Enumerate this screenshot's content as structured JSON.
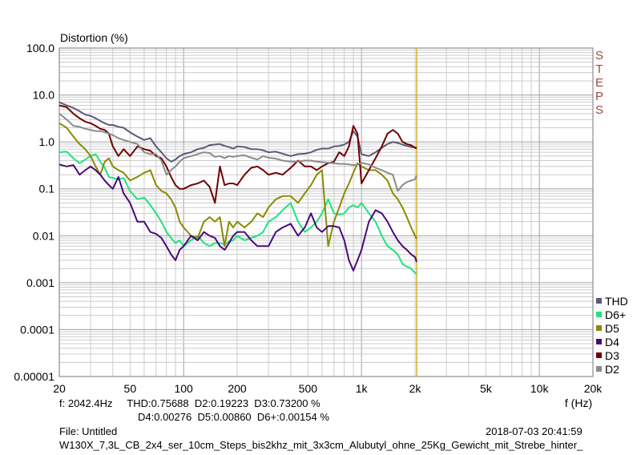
{
  "chart_data": {
    "type": "line",
    "title": "Distortion (%)",
    "xlabel": "f (Hz)",
    "xscale": "log",
    "yscale": "log",
    "xlim": [
      20,
      20000
    ],
    "ylim": [
      1e-05,
      100
    ],
    "x_tick_labels": [
      "20",
      "50",
      "100",
      "200",
      "500",
      "1k",
      "2k",
      "5k",
      "10k",
      "20k"
    ],
    "y_tick_labels": [
      "100.0",
      "10.0",
      "1.0",
      "0.1",
      "0.01",
      "0.001",
      "0.0001",
      "0.00001"
    ],
    "brand_label": "STEPS",
    "cursor_frequency": 2042.4,
    "grid": true,
    "legend_position": "right-bottom",
    "x": [
      20,
      22,
      24,
      26,
      28,
      30,
      32,
      34,
      36,
      38,
      40,
      43,
      46,
      50,
      55,
      60,
      65,
      70,
      75,
      80,
      85,
      90,
      95,
      100,
      110,
      120,
      130,
      140,
      150,
      160,
      170,
      180,
      190,
      200,
      220,
      240,
      260,
      280,
      300,
      330,
      360,
      400,
      440,
      480,
      520,
      560,
      600,
      650,
      700,
      750,
      800,
      850,
      900,
      950,
      1000,
      1100,
      1200,
      1300,
      1400,
      1500,
      1600,
      1700,
      1800,
      1900,
      2000,
      2042
    ],
    "series": [
      {
        "name": "THD",
        "color": "#5a5a78",
        "values": [
          7,
          6,
          5.3,
          4.5,
          3.8,
          3.6,
          3.2,
          2.8,
          2.5,
          2.3,
          2.3,
          2.1,
          2,
          1.6,
          1.3,
          1.1,
          1.2,
          0.8,
          0.6,
          0.45,
          0.38,
          0.42,
          0.5,
          0.55,
          0.6,
          0.7,
          0.75,
          0.85,
          0.88,
          0.9,
          0.82,
          0.78,
          0.72,
          0.8,
          0.78,
          0.7,
          0.7,
          0.66,
          0.6,
          0.62,
          0.56,
          0.5,
          0.55,
          0.56,
          0.6,
          0.68,
          0.72,
          0.72,
          0.8,
          0.82,
          0.88,
          1.0,
          1.7,
          1.3,
          0.55,
          0.5,
          0.6,
          0.75,
          0.9,
          1.0,
          0.95,
          0.88,
          0.82,
          0.78,
          0.76,
          0.76
        ]
      },
      {
        "name": "D6+",
        "color": "#1ee47c",
        "values": [
          0.6,
          0.62,
          0.45,
          0.35,
          0.42,
          0.5,
          0.55,
          0.38,
          0.28,
          0.18,
          0.17,
          0.16,
          0.17,
          0.09,
          0.06,
          0.065,
          0.045,
          0.03,
          0.02,
          0.012,
          0.009,
          0.007,
          0.008,
          0.006,
          0.008,
          0.01,
          0.007,
          0.006,
          0.007,
          0.007,
          0.0065,
          0.0075,
          0.008,
          0.01,
          0.008,
          0.009,
          0.01,
          0.012,
          0.02,
          0.025,
          0.035,
          0.05,
          0.02,
          0.012,
          0.015,
          0.02,
          0.03,
          0.06,
          0.03,
          0.028,
          0.03,
          0.04,
          0.045,
          0.04,
          0.05,
          0.03,
          0.02,
          0.01,
          0.006,
          0.005,
          0.004,
          0.0025,
          0.0022,
          0.002,
          0.0016,
          0.00154
        ]
      },
      {
        "name": "D5",
        "color": "#8a8a00",
        "values": [
          2.5,
          2,
          1.3,
          0.9,
          0.7,
          0.5,
          0.3,
          0.2,
          0.38,
          0.45,
          0.3,
          0.25,
          0.22,
          0.15,
          0.18,
          0.22,
          0.25,
          0.12,
          0.09,
          0.08,
          0.06,
          0.04,
          0.02,
          0.015,
          0.01,
          0.009,
          0.02,
          0.025,
          0.02,
          0.025,
          0.006,
          0.02,
          0.015,
          0.02,
          0.015,
          0.02,
          0.03,
          0.025,
          0.04,
          0.06,
          0.07,
          0.07,
          0.05,
          0.08,
          0.12,
          0.2,
          0.25,
          0.006,
          0.02,
          0.04,
          0.08,
          0.13,
          0.22,
          0.35,
          0.3,
          0.25,
          0.25,
          0.2,
          0.15,
          0.08,
          0.06,
          0.04,
          0.025,
          0.015,
          0.01,
          0.0086
        ]
      },
      {
        "name": "D4",
        "color": "#4a0a7a",
        "values": [
          0.33,
          0.3,
          0.32,
          0.2,
          0.25,
          0.3,
          0.25,
          0.2,
          0.15,
          0.12,
          0.1,
          0.18,
          0.08,
          0.05,
          0.02,
          0.02,
          0.012,
          0.011,
          0.009,
          0.006,
          0.004,
          0.003,
          0.005,
          0.006,
          0.01,
          0.008,
          0.012,
          0.01,
          0.009,
          0.006,
          0.005,
          0.007,
          0.01,
          0.012,
          0.012,
          0.008,
          0.006,
          0.006,
          0.006,
          0.012,
          0.015,
          0.018,
          0.01,
          0.015,
          0.03,
          0.015,
          0.012,
          0.016,
          0.016,
          0.015,
          0.008,
          0.003,
          0.0018,
          0.003,
          0.005,
          0.02,
          0.035,
          0.03,
          0.02,
          0.012,
          0.008,
          0.006,
          0.005,
          0.004,
          0.0035,
          0.00276
        ]
      },
      {
        "name": "D3",
        "color": "#700000",
        "values": [
          6,
          5.5,
          4,
          3.2,
          2.7,
          2.5,
          2.2,
          1.9,
          1.8,
          1.5,
          0.8,
          0.5,
          0.7,
          0.5,
          0.8,
          0.7,
          0.65,
          0.5,
          0.45,
          0.3,
          0.18,
          0.12,
          0.1,
          0.1,
          0.12,
          0.13,
          0.15,
          0.11,
          0.05,
          0.3,
          0.12,
          0.13,
          0.13,
          0.12,
          0.2,
          0.28,
          0.3,
          0.25,
          0.2,
          0.22,
          0.2,
          0.28,
          0.4,
          0.3,
          0.3,
          0.25,
          0.3,
          0.35,
          0.38,
          0.6,
          0.5,
          0.8,
          2.2,
          1.5,
          0.13,
          0.25,
          0.45,
          0.8,
          1.5,
          1.8,
          1.5,
          1.0,
          0.9,
          0.85,
          0.75,
          0.732
        ]
      },
      {
        "name": "D2",
        "color": "#8a8a8a",
        "values": [
          4,
          3,
          2.2,
          2.1,
          1.9,
          1.8,
          1.7,
          1.7,
          1.6,
          1.5,
          1.4,
          1.2,
          1.1,
          1.0,
          0.9,
          0.6,
          0.55,
          0.55,
          0.4,
          0.2,
          0.25,
          0.3,
          0.38,
          0.45,
          0.5,
          0.55,
          0.6,
          0.58,
          0.48,
          0.5,
          0.45,
          0.5,
          0.48,
          0.5,
          0.52,
          0.46,
          0.42,
          0.5,
          0.46,
          0.44,
          0.4,
          0.38,
          0.38,
          0.4,
          0.4,
          0.38,
          0.37,
          0.36,
          0.35,
          0.34,
          0.34,
          0.33,
          0.32,
          0.33,
          0.36,
          0.33,
          0.28,
          0.25,
          0.22,
          0.2,
          0.09,
          0.12,
          0.14,
          0.15,
          0.16,
          0.192
        ]
      }
    ]
  },
  "readout": {
    "line1": "f: 2042.4Hz     THD:0.75688  D2:0.19223  D3:0.73200 %",
    "line2": "D4:0.00276  D5:0.00860  D6+:0.00154 %",
    "file": "File: Untitled",
    "timestamp": "2018-07-03 20:41:59",
    "filename": "W130X_7,3L_CB_2x4_ser_10cm_Steps_bis2khz_mit_3x3cm_Alubutyl_ohne_25Kg_Gewicht_mit_Strebe_hinter_"
  }
}
